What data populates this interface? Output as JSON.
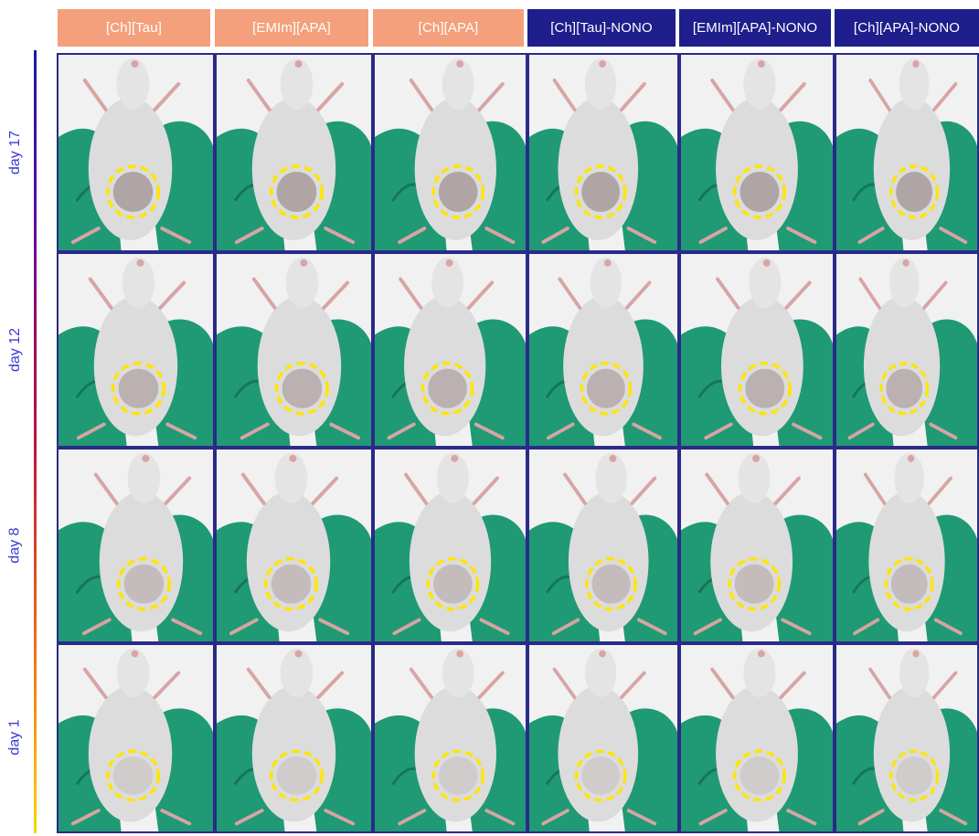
{
  "columns": [
    {
      "label": "[Ch][Tau]",
      "style": "peach"
    },
    {
      "label": "[EMIm][APA]",
      "style": "peach"
    },
    {
      "label": "[Ch][APA]",
      "style": "peach"
    },
    {
      "label": "[Ch][Tau]-NONO",
      "style": "navy"
    },
    {
      "label": "[EMIm][APA]-NONO",
      "style": "navy"
    },
    {
      "label": "[Ch][APA]-NONO",
      "style": "navy"
    }
  ],
  "rows": [
    {
      "label": "day 17"
    },
    {
      "label": "day 12"
    },
    {
      "label": "day 8"
    },
    {
      "label": "day 1"
    }
  ],
  "colors": {
    "peach_header": "#f4a07c",
    "navy_header": "#1e1e8c",
    "glove": "#1f9a74",
    "mouse": "#dcdcdc",
    "wound_circle": "#ffe500",
    "row_label": "#3a3ad0"
  }
}
